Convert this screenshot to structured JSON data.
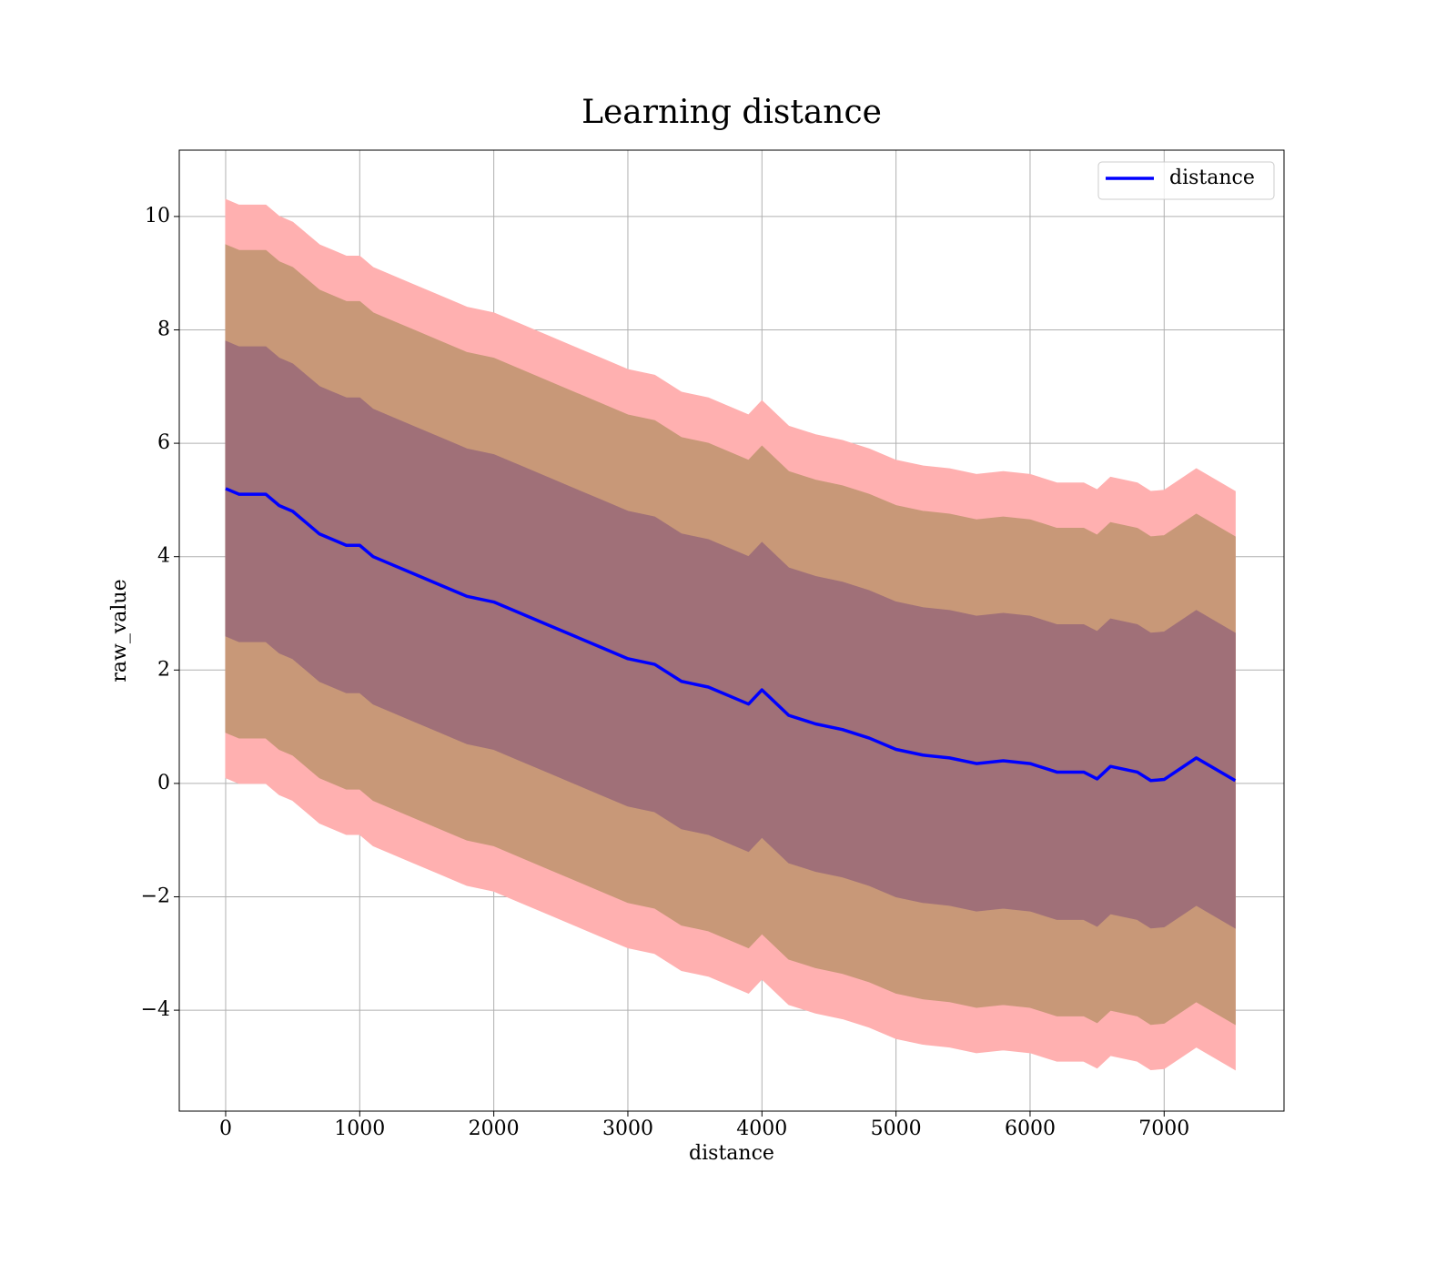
{
  "chart_data": {
    "type": "line",
    "title": "Learning distance",
    "xlabel": "distance",
    "ylabel": "raw_value",
    "x": [
      0,
      100,
      200,
      300,
      400,
      500,
      600,
      700,
      800,
      900,
      1000,
      1100,
      1200,
      1400,
      1600,
      1800,
      2000,
      2200,
      2400,
      2600,
      2800,
      3000,
      3200,
      3400,
      3600,
      3800,
      3900,
      4000,
      4200,
      4400,
      4600,
      4800,
      5000,
      5200,
      5400,
      5600,
      5800,
      6000,
      6200,
      6400,
      6500,
      6600,
      6800,
      6900,
      7000,
      7240,
      7530
    ],
    "series": [
      {
        "name": "distance",
        "color": "#0000ff",
        "values": [
          5.2,
          5.1,
          5.1,
          5.1,
          4.9,
          4.8,
          4.6,
          4.4,
          4.3,
          4.2,
          4.2,
          4.0,
          3.9,
          3.7,
          3.5,
          3.3,
          3.2,
          3.0,
          2.8,
          2.6,
          2.4,
          2.2,
          2.1,
          1.8,
          1.7,
          1.5,
          1.4,
          1.65,
          1.2,
          1.05,
          0.95,
          0.8,
          0.6,
          0.5,
          0.45,
          0.35,
          0.4,
          0.35,
          0.2,
          0.2,
          0.08,
          0.3,
          0.2,
          0.05,
          0.07,
          0.45,
          0.05
        ]
      }
    ],
    "bands": [
      {
        "color": "#ffb0b0",
        "upper": [
          10.3,
          10.2,
          10.2,
          10.2,
          10.0,
          9.9,
          9.7,
          9.5,
          9.4,
          9.3,
          9.3,
          9.1,
          9.0,
          8.8,
          8.6,
          8.4,
          8.3,
          8.1,
          7.9,
          7.7,
          7.5,
          7.3,
          7.2,
          6.9,
          6.8,
          6.6,
          6.5,
          6.75,
          6.3,
          6.15,
          6.05,
          5.9,
          5.7,
          5.6,
          5.55,
          5.45,
          5.5,
          5.45,
          5.3,
          5.3,
          5.18,
          5.4,
          5.3,
          5.15,
          5.17,
          5.55,
          5.15
        ],
        "lower": [
          0.1,
          0.0,
          0.0,
          0.0,
          -0.2,
          -0.3,
          -0.5,
          -0.7,
          -0.8,
          -0.9,
          -0.9,
          -1.1,
          -1.2,
          -1.4,
          -1.6,
          -1.8,
          -1.9,
          -2.1,
          -2.3,
          -2.5,
          -2.7,
          -2.9,
          -3.0,
          -3.3,
          -3.4,
          -3.6,
          -3.7,
          -3.45,
          -3.9,
          -4.05,
          -4.15,
          -4.3,
          -4.5,
          -4.6,
          -4.65,
          -4.75,
          -4.7,
          -4.75,
          -4.9,
          -4.9,
          -5.02,
          -4.8,
          -4.9,
          -5.05,
          -5.03,
          -4.65,
          -5.05
        ]
      },
      {
        "color": "#c89878",
        "upper": [
          9.5,
          9.4,
          9.4,
          9.4,
          9.2,
          9.1,
          8.9,
          8.7,
          8.6,
          8.5,
          8.5,
          8.3,
          8.2,
          8.0,
          7.8,
          7.6,
          7.5,
          7.3,
          7.1,
          6.9,
          6.7,
          6.5,
          6.4,
          6.1,
          6.0,
          5.8,
          5.7,
          5.95,
          5.5,
          5.35,
          5.25,
          5.1,
          4.9,
          4.8,
          4.75,
          4.65,
          4.7,
          4.65,
          4.5,
          4.5,
          4.38,
          4.6,
          4.5,
          4.35,
          4.37,
          4.75,
          4.35
        ],
        "lower": [
          0.9,
          0.8,
          0.8,
          0.8,
          0.6,
          0.5,
          0.3,
          0.1,
          0.0,
          -0.1,
          -0.1,
          -0.3,
          -0.4,
          -0.6,
          -0.8,
          -1.0,
          -1.1,
          -1.3,
          -1.5,
          -1.7,
          -1.9,
          -2.1,
          -2.2,
          -2.5,
          -2.6,
          -2.8,
          -2.9,
          -2.65,
          -3.1,
          -3.25,
          -3.35,
          -3.5,
          -3.7,
          -3.8,
          -3.85,
          -3.95,
          -3.9,
          -3.95,
          -4.1,
          -4.1,
          -4.22,
          -4.0,
          -4.1,
          -4.25,
          -4.23,
          -3.85,
          -4.25
        ]
      },
      {
        "color": "#a07078",
        "upper": [
          7.8,
          7.7,
          7.7,
          7.7,
          7.5,
          7.4,
          7.2,
          7.0,
          6.9,
          6.8,
          6.8,
          6.6,
          6.5,
          6.3,
          6.1,
          5.9,
          5.8,
          5.6,
          5.4,
          5.2,
          5.0,
          4.8,
          4.7,
          4.4,
          4.3,
          4.1,
          4.0,
          4.25,
          3.8,
          3.65,
          3.55,
          3.4,
          3.2,
          3.1,
          3.05,
          2.95,
          3.0,
          2.95,
          2.8,
          2.8,
          2.68,
          2.9,
          2.8,
          2.65,
          2.67,
          3.05,
          2.65
        ],
        "lower": [
          2.6,
          2.5,
          2.5,
          2.5,
          2.3,
          2.2,
          2.0,
          1.8,
          1.7,
          1.6,
          1.6,
          1.4,
          1.3,
          1.1,
          0.9,
          0.7,
          0.6,
          0.4,
          0.2,
          0.0,
          -0.2,
          -0.4,
          -0.5,
          -0.8,
          -0.9,
          -1.1,
          -1.2,
          -0.95,
          -1.4,
          -1.55,
          -1.65,
          -1.8,
          -2.0,
          -2.1,
          -2.15,
          -2.25,
          -2.2,
          -2.25,
          -2.4,
          -2.4,
          -2.52,
          -2.3,
          -2.4,
          -2.55,
          -2.53,
          -2.15,
          -2.55
        ]
      }
    ],
    "xlim": [
      -346,
      7894
    ],
    "ylim": [
      -5.78,
      11.17
    ],
    "xticks": [
      0,
      1000,
      2000,
      3000,
      4000,
      5000,
      6000,
      7000
    ],
    "yticks": [
      {
        "value": -4,
        "label": "−4"
      },
      {
        "value": -2,
        "label": "−2"
      },
      0,
      2,
      4,
      6,
      8,
      10
    ],
    "grid": true,
    "legend": "upper right"
  }
}
